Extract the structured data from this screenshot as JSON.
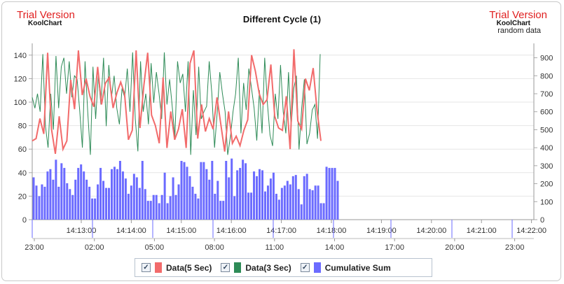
{
  "watermark": {
    "left_trial": "Trial Version",
    "left_brand": "KoolChart",
    "right_trial": "Trial Version",
    "right_brand": "KoolChart",
    "right_sub": "random data"
  },
  "chart_data": {
    "type": "line",
    "title": "Different Cycle (1)",
    "colors": {
      "data5": "#f26b6b",
      "data3": "#2e8b57",
      "cumulative": "#6b6bff"
    },
    "x_time_ticks": [
      "14:13:00",
      "14:14:00",
      "14:15:00",
      "14:16:00",
      "14:17:00",
      "14:18:00",
      "14:19:00",
      "14:20:00",
      "14:21:00",
      "14:22:00"
    ],
    "x_hour_ticks": [
      "23:00",
      "02:00",
      "05:00",
      "08:00",
      "11:00",
      "14:00",
      "17:00",
      "20:00",
      "23:00"
    ],
    "y_left": {
      "ticks": [
        "0",
        "20",
        "40",
        "60",
        "80",
        "100",
        "120",
        "140"
      ],
      "range": [
        0,
        150
      ]
    },
    "y_right": {
      "ticks": [
        "0",
        "100",
        "200",
        "300",
        "400",
        "500",
        "600",
        "700",
        "800",
        "900"
      ],
      "range": [
        0,
        980
      ]
    },
    "legend": {
      "position": "bottom",
      "entries": [
        "Data(5 Sec)",
        "Data(3 Sec)",
        "Cumulative Sum"
      ]
    },
    "series": [
      {
        "name": "Data(5 Sec)",
        "axis": "left",
        "type": "line",
        "values": [
          67,
          69,
          86,
          73,
          142,
          77,
          56,
          88,
          60,
          67,
          119,
          94,
          144,
          106,
          120,
          105,
          96,
          130,
          98,
          116,
          121,
          95,
          108,
          117,
          107,
          68,
          76,
          144,
          78,
          114,
          142,
          89,
          80,
          65,
          121,
          61,
          92,
          68,
          77,
          94,
          61,
          133,
          144,
          69,
          98,
          75,
          86,
          77,
          104,
          81,
          58,
          92,
          65,
          71,
          63,
          76,
          85,
          140,
          126,
          107,
          98,
          102,
          132,
          88,
          78,
          76,
          105,
          60,
          145,
          84,
          77,
          120,
          110,
          129,
          93,
          67
        ]
      },
      {
        "name": "Data(3 Sec)",
        "axis": "right",
        "type": "line",
        "values": [
          680,
          620,
          700,
          600,
          920,
          520,
          400,
          700,
          500,
          910,
          620,
          850,
          900,
          700,
          880,
          680,
          800,
          780,
          600,
          400,
          880,
          600,
          360,
          850,
          560,
          800,
          640,
          900,
          520,
          860,
          680,
          800,
          620,
          530,
          730,
          680,
          840,
          600,
          930,
          560,
          380,
          880,
          600,
          700,
          530,
          870,
          650,
          820,
          700,
          560,
          930,
          640,
          780,
          630,
          460,
          880,
          760,
          810,
          600,
          880,
          360,
          720,
          470,
          850,
          560,
          600,
          630,
          880,
          700,
          400,
          590,
          820,
          700,
          600,
          360,
          460,
          600,
          700,
          900,
          480,
          760,
          610,
          840,
          730,
          620,
          440,
          720,
          480,
          900,
          650,
          470,
          410,
          700,
          560,
          860,
          600,
          480,
          820,
          510,
          730,
          800,
          390,
          620,
          780,
          420,
          480,
          610,
          640,
          450,
          920
        ]
      },
      {
        "name": "Cumulative Sum",
        "axis": "left",
        "type": "bar",
        "values": [
          36,
          29,
          20,
          30,
          28,
          41,
          43,
          34,
          51,
          28,
          48,
          44,
          31,
          26,
          21,
          34,
          44,
          47,
          41,
          34,
          28,
          18,
          18,
          30,
          44,
          33,
          27,
          27,
          43,
          45,
          43,
          50,
          41,
          35,
          22,
          29,
          39,
          36,
          27,
          50,
          26,
          16,
          16,
          21,
          21,
          14,
          21,
          40,
          14,
          20,
          36,
          21,
          30,
          50,
          49,
          45,
          37,
          28,
          22,
          18,
          49,
          49,
          43,
          34,
          50,
          22,
          33,
          16,
          16,
          50,
          36,
          52,
          20,
          42,
          44,
          51,
          48,
          23,
          23,
          41,
          37,
          43,
          42,
          24,
          29,
          35,
          40,
          22,
          17,
          27,
          29,
          33,
          30,
          37,
          38,
          26,
          13,
          37,
          39,
          26,
          25,
          29,
          29,
          14,
          14,
          45,
          44,
          44,
          44,
          33
        ]
      }
    ]
  }
}
